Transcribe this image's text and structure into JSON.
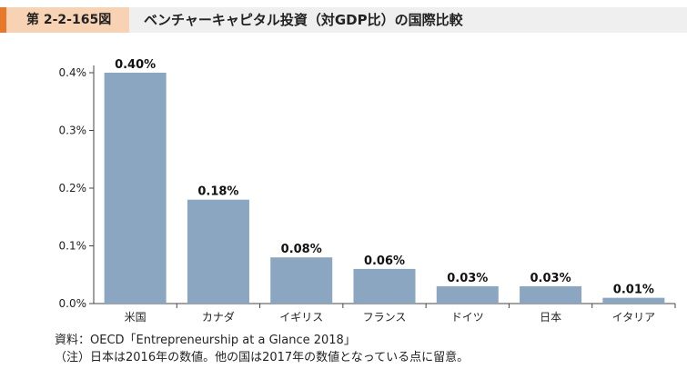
{
  "header": {
    "figure_label": "第 2-2-165図",
    "title": "ベンチャーキャピタル投資（対GDP比）の国際比較"
  },
  "chart_data": {
    "type": "bar",
    "categories": [
      "米国",
      "カナダ",
      "イギリス",
      "フランス",
      "ドイツ",
      "日本",
      "イタリア"
    ],
    "values": [
      0.4,
      0.18,
      0.08,
      0.06,
      0.03,
      0.03,
      0.01
    ],
    "data_labels": [
      "0.40%",
      "0.18%",
      "0.08%",
      "0.06%",
      "0.03%",
      "0.03%",
      "0.01%"
    ],
    "ylim": [
      0,
      0.4
    ],
    "yticks": [
      0.0,
      0.1,
      0.2,
      0.3,
      0.4
    ],
    "ytick_labels": [
      "0.0%",
      "0.1%",
      "0.2%",
      "0.3%",
      "0.4%"
    ],
    "grid": false,
    "colors": {
      "bar": "#8aa6c1",
      "axis": "#444444"
    }
  },
  "notes": {
    "source": "資料：OECD「Entrepreneurship at a Glance 2018」",
    "note": "（注）日本は2016年の数値。他の国は2017年の数値となっている点に留意。"
  }
}
